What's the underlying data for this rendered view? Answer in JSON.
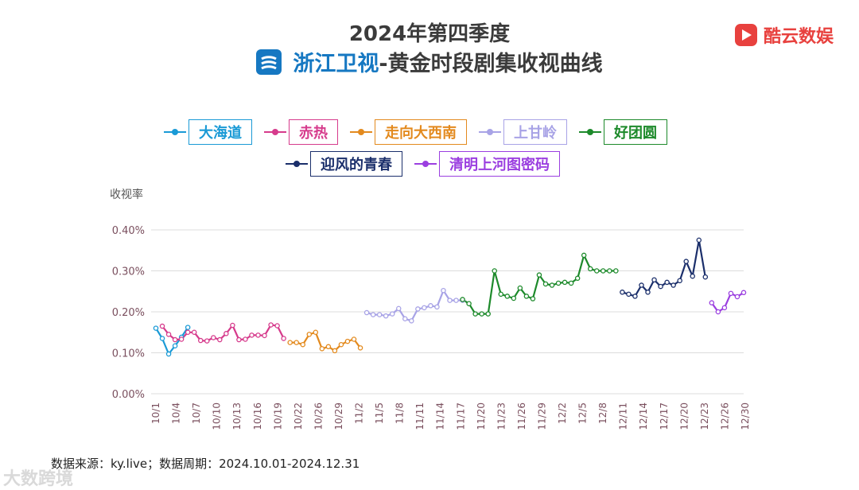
{
  "header": {
    "title_line1": "2024年第四季度",
    "channel": "浙江卫视",
    "title_line2_rest": "-黄金时段剧集收视曲线",
    "brand": "酷云数娱"
  },
  "footer": {
    "source": "数据来源：ky.live；数据周期：2024.10.01-2024.12.31"
  },
  "watermark": "大数跨境",
  "chart_data": {
    "type": "line",
    "ylabel": "收视率",
    "ylim": [
      0,
      0.4
    ],
    "yticks": [
      "0.00%",
      "0.10%",
      "0.20%",
      "0.30%",
      "0.40%"
    ],
    "grid": true,
    "legend_position": "top",
    "xtick_labels": [
      "10/1",
      "10/4",
      "10/7",
      "10/10",
      "10/13",
      "10/16",
      "10/19",
      "10/22",
      "10/26",
      "10/29",
      "11/2",
      "11/5",
      "11/8",
      "11/11",
      "11/14",
      "11/17",
      "11/20",
      "11/23",
      "11/26",
      "11/29",
      "12/2",
      "12/5",
      "12/8",
      "12/11",
      "12/14",
      "12/17",
      "12/20",
      "12/23",
      "12/26",
      "12/30"
    ],
    "series": [
      {
        "name": "大海道",
        "color": "#1a9ad6",
        "x": [
          0,
          1,
          2,
          3,
          4,
          5
        ],
        "y": [
          0.16,
          0.135,
          0.097,
          0.117,
          0.138,
          0.162
        ]
      },
      {
        "name": "赤热",
        "color": "#d63b8c",
        "x": [
          1,
          2,
          3,
          4,
          5,
          6,
          7,
          8,
          9,
          10,
          11,
          12,
          13,
          14,
          15,
          16,
          17,
          18,
          19,
          20
        ],
        "y": [
          0.165,
          0.145,
          0.132,
          0.133,
          0.15,
          0.15,
          0.13,
          0.129,
          0.137,
          0.132,
          0.147,
          0.167,
          0.132,
          0.133,
          0.143,
          0.143,
          0.142,
          0.168,
          0.166,
          0.135
        ]
      },
      {
        "name": "走向大西南",
        "color": "#e38a1e",
        "x": [
          21,
          22,
          23,
          24,
          25,
          26,
          27,
          28,
          29,
          30,
          31,
          32
        ],
        "y": [
          0.125,
          0.125,
          0.12,
          0.145,
          0.15,
          0.11,
          0.115,
          0.105,
          0.12,
          0.128,
          0.133,
          0.112
        ]
      },
      {
        "name": "上甘岭",
        "color": "#a8a3e6",
        "x": [
          33,
          34,
          35,
          36,
          37,
          38,
          39,
          40,
          41,
          42,
          43,
          44,
          45,
          46,
          47,
          48
        ],
        "y": [
          0.198,
          0.193,
          0.193,
          0.19,
          0.195,
          0.208,
          0.183,
          0.178,
          0.207,
          0.21,
          0.215,
          0.212,
          0.252,
          0.228,
          0.228,
          0.228
        ]
      },
      {
        "name": "好团圆",
        "color": "#1d8a2b",
        "x": [
          48,
          49,
          50,
          51,
          52,
          53,
          54,
          55,
          56,
          57,
          58,
          59,
          60,
          61,
          62,
          63,
          64,
          65,
          66,
          67,
          68,
          69,
          70,
          71,
          72
        ],
        "y": [
          0.23,
          0.22,
          0.195,
          0.195,
          0.195,
          0.3,
          0.243,
          0.238,
          0.233,
          0.258,
          0.238,
          0.232,
          0.29,
          0.268,
          0.265,
          0.27,
          0.272,
          0.27,
          0.282,
          0.338,
          0.305,
          0.3,
          0.3,
          0.3,
          0.3
        ]
      },
      {
        "name": "迎风的青春",
        "color": "#1b2f6b",
        "x": [
          73,
          74,
          75,
          76,
          77,
          78,
          79,
          80,
          81,
          82,
          83,
          84,
          85,
          86
        ],
        "y": [
          0.248,
          0.243,
          0.238,
          0.265,
          0.248,
          0.278,
          0.262,
          0.272,
          0.265,
          0.276,
          0.323,
          0.287,
          0.375,
          0.285
        ]
      },
      {
        "name": "清明上河图密码",
        "color": "#9b3fe0",
        "x": [
          87,
          88,
          89,
          90,
          91,
          92
        ],
        "y": [
          0.222,
          0.2,
          0.21,
          0.245,
          0.237,
          0.247
        ]
      }
    ]
  }
}
